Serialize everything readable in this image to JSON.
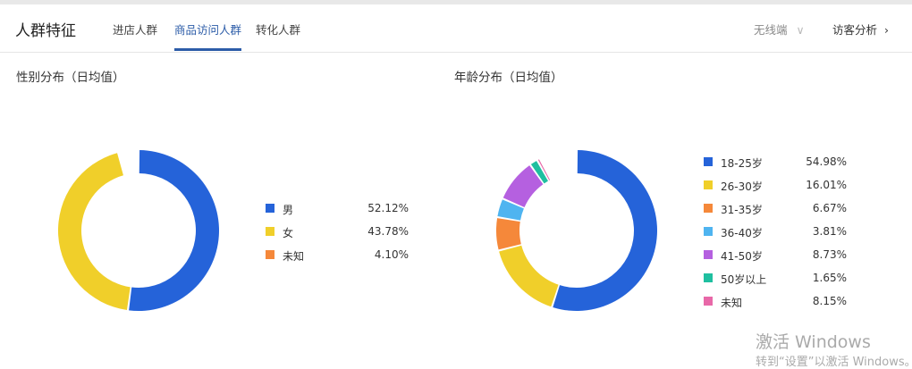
{
  "header": {
    "title": "人群特征",
    "tabs": [
      {
        "label": "进店人群",
        "active": false
      },
      {
        "label": "商品访问人群",
        "active": true
      },
      {
        "label": "转化人群",
        "active": false
      }
    ],
    "device": "无线端",
    "visitor_analysis": "访客分析"
  },
  "chart_data": [
    {
      "type": "pie",
      "donut": true,
      "title": "性别分布（日均值）",
      "legend": "right",
      "series": [
        {
          "name": "男",
          "value": 52.12,
          "label": "52.12%",
          "color": "#2563d9"
        },
        {
          "name": "女",
          "value": 43.78,
          "label": "43.78%",
          "color": "#f0cf2a"
        },
        {
          "name": "未知",
          "value": 4.1,
          "label": "4.10%",
          "color": "#f5883a"
        }
      ]
    },
    {
      "type": "pie",
      "donut": true,
      "title": "年龄分布（日均值）",
      "legend": "right",
      "series": [
        {
          "name": "18-25岁",
          "value": 54.98,
          "label": "54.98%",
          "color": "#2563d9"
        },
        {
          "name": "26-30岁",
          "value": 16.01,
          "label": "16.01%",
          "color": "#f0cf2a"
        },
        {
          "name": "31-35岁",
          "value": 6.67,
          "label": "6.67%",
          "color": "#f5883a"
        },
        {
          "name": "36-40岁",
          "value": 3.81,
          "label": "3.81%",
          "color": "#4fb4f0"
        },
        {
          "name": "41-50岁",
          "value": 8.73,
          "label": "8.73%",
          "color": "#b560e0"
        },
        {
          "name": "50岁以上",
          "value": 1.65,
          "label": "1.65%",
          "color": "#1fbfa0"
        },
        {
          "name": "未知",
          "value": 8.15,
          "label": "8.15%",
          "color": "#e868a8"
        }
      ]
    }
  ],
  "watermark": {
    "line1": "激活 Windows",
    "line2": "转到“设置”以激活 Windows。"
  }
}
